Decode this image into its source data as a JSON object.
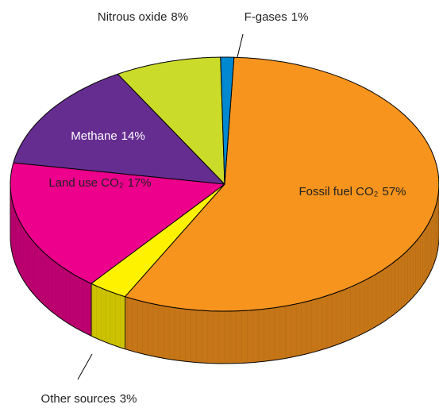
{
  "chart_data": {
    "type": "pie",
    "categories": [
      "Fossil fuel CO₂",
      "Other sources",
      "Land use CO₂",
      "Methane",
      "Nitrous oxide",
      "F-gases"
    ],
    "values": [
      57,
      3,
      17,
      14,
      8,
      1
    ],
    "value_labels": [
      "57%",
      "3%",
      "17%",
      "14%",
      "8%",
      "1%"
    ],
    "colors": [
      "#f7941d",
      "#fff200",
      "#ec008c",
      "#662d91",
      "#cbdb2a",
      "#0088d1"
    ]
  }
}
